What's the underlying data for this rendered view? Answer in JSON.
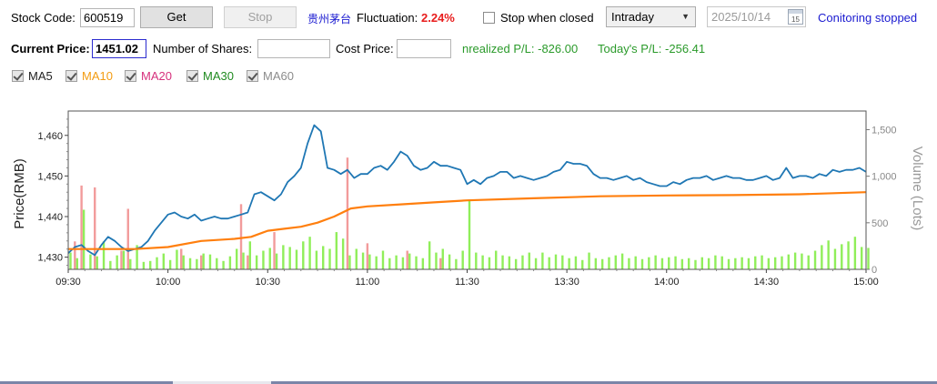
{
  "toolbar": {
    "stock_code_label": "Stock Code:",
    "stock_code_value": "600519",
    "get_label": "Get",
    "stop_label": "Stop",
    "stock_name": "贵州茅台",
    "fluctuation_label": "Fluctuation:",
    "fluctuation_value": "2.24%",
    "stop_when_closed_label": "Stop when closed",
    "stop_when_closed_checked": false,
    "period_selected": "Intraday",
    "date_value": "2025/10/14",
    "date_icon_text": "15",
    "monitor_status": "Conitoring stopped"
  },
  "position": {
    "current_price_label": "Current Price:",
    "current_price_value": "1451.02",
    "shares_label": "Number of Shares:",
    "shares_value": "",
    "cost_label": "Cost Price:",
    "cost_value": "",
    "unrealized_label": "nrealized P/L:",
    "unrealized_value": "-826.00",
    "today_label": "Today's P/L:",
    "today_value": "-256.41"
  },
  "ma_toggles": [
    {
      "label": "MA5",
      "color": "#222222",
      "checked": true
    },
    {
      "label": "MA10",
      "color": "#f39c12",
      "checked": true
    },
    {
      "label": "MA20",
      "color": "#d6317d",
      "checked": true
    },
    {
      "label": "MA30",
      "color": "#1f8a1f",
      "checked": true
    },
    {
      "label": "MA60",
      "color": "#8c8c8c",
      "checked": true
    }
  ],
  "colors": {
    "price_line": "#1f77b4",
    "avg_line": "#ff7f0e",
    "volume_up": "#90ee5a",
    "volume_down": "#f29b9b",
    "fluctuation": "#e81c1c",
    "stock_name": "#1a1ad0",
    "status": "#1a1ad0",
    "pl": "#2a9a2a"
  },
  "chart_data": {
    "type": "line",
    "ylabel": "Price(RMB)",
    "y2label": "Volume (Lots)",
    "ylim": [
      1427,
      1466
    ],
    "y2lim": [
      0,
      1700
    ],
    "yticks": [
      1430,
      1440,
      1450,
      1460
    ],
    "yticklabels": [
      "1,430",
      "1,440",
      "1,450",
      "1,460"
    ],
    "y2ticks": [
      0,
      500,
      1000,
      1500
    ],
    "y2ticklabels": [
      "0",
      "500",
      "1,000",
      "1,500"
    ],
    "xticklabels": [
      "09:30",
      "10:00",
      "10:30",
      "11:00",
      "11:30",
      "13:30",
      "14:00",
      "14:30",
      "15:00"
    ],
    "xtick_minutes": [
      0,
      30,
      60,
      90,
      120,
      150,
      180,
      210,
      240
    ],
    "xlim": [
      0,
      240
    ],
    "grid": false,
    "series": [
      {
        "x": [
          0,
          2,
          4,
          6,
          8,
          10,
          12,
          14,
          16,
          18,
          20,
          22,
          24,
          26,
          28,
          30,
          32,
          34,
          36,
          38,
          40,
          42,
          44,
          46,
          48,
          50,
          52,
          54,
          56,
          58,
          60,
          62,
          64,
          66,
          68,
          70,
          72,
          74,
          76,
          78,
          80,
          82,
          84,
          86,
          88,
          90,
          92,
          94,
          96,
          98,
          100,
          102,
          104,
          106,
          108,
          110,
          112,
          114,
          116,
          118,
          120,
          122,
          124,
          126,
          128,
          130,
          132,
          134,
          136,
          138,
          140,
          142,
          144,
          146,
          148,
          150,
          152,
          154,
          156,
          158,
          160,
          162,
          164,
          166,
          168,
          170,
          172,
          174,
          176,
          178,
          180,
          182,
          184,
          186,
          188,
          190,
          192,
          194,
          196,
          198,
          200,
          202,
          204,
          206,
          208,
          210,
          212,
          214,
          216,
          218,
          220,
          222,
          224,
          226,
          228,
          230,
          232,
          234,
          236,
          238,
          240
        ],
        "values": [
          1431.0,
          1432.5,
          1433.0,
          1431.5,
          1430.5,
          1433.0,
          1435.0,
          1434.0,
          1432.5,
          1431.5,
          1432.0,
          1432.5,
          1434.0,
          1436.5,
          1438.5,
          1440.5,
          1441.0,
          1440.0,
          1439.5,
          1440.5,
          1439.0,
          1439.5,
          1440.0,
          1439.5,
          1439.5,
          1440.0,
          1440.5,
          1441.0,
          1445.5,
          1446.0,
          1445.0,
          1444.0,
          1445.5,
          1448.5,
          1450.0,
          1452.0,
          1458.0,
          1462.5,
          1461.0,
          1452.0,
          1451.5,
          1450.5,
          1451.5,
          1449.5,
          1450.5,
          1450.5,
          1452.0,
          1452.5,
          1451.5,
          1453.5,
          1456.0,
          1455.0,
          1452.5,
          1451.5,
          1452.0,
          1453.5,
          1452.5,
          1452.5,
          1452.0,
          1451.5,
          1448.0,
          1449.0,
          1448.0,
          1449.5,
          1450.0,
          1451.0,
          1451.0,
          1449.5,
          1450.0,
          1449.5,
          1449.0,
          1449.5,
          1450.0,
          1451.0,
          1451.5,
          1453.5,
          1453.0,
          1453.0,
          1452.5,
          1450.5,
          1449.5,
          1449.5,
          1449.0,
          1449.5,
          1450.0,
          1449.0,
          1449.5,
          1448.5,
          1448.0,
          1447.5,
          1447.5,
          1448.5,
          1448.0,
          1449.0,
          1449.5,
          1449.5,
          1450.0,
          1449.0,
          1449.5,
          1450.0,
          1449.5,
          1449.5,
          1449.0,
          1449.0,
          1449.5,
          1450.0,
          1449.0,
          1449.5,
          1452.0,
          1449.5,
          1450.0,
          1450.0,
          1449.5,
          1450.5,
          1450.0,
          1451.5,
          1451.0,
          1451.5,
          1451.5,
          1452.0,
          1451.0
        ]
      },
      {
        "x": [
          0,
          10,
          20,
          30,
          40,
          50,
          55,
          60,
          65,
          70,
          75,
          80,
          85,
          90,
          100,
          110,
          120,
          140,
          160,
          180,
          200,
          220,
          240
        ],
        "values": [
          1432.0,
          1432.0,
          1432.0,
          1432.5,
          1434.0,
          1434.5,
          1435.0,
          1436.5,
          1437.0,
          1437.5,
          1438.5,
          1440.0,
          1442.0,
          1442.5,
          1443.0,
          1443.5,
          1444.0,
          1444.5,
          1445.0,
          1445.2,
          1445.3,
          1445.5,
          1446.0
        ]
      }
    ],
    "volume_up": [
      180,
      120,
      640,
      160,
      140,
      300,
      90,
      150,
      200,
      110,
      260,
      80,
      90,
      130,
      170,
      100,
      210,
      150,
      120,
      110,
      170,
      160,
      120,
      90,
      140,
      220,
      180,
      300,
      150,
      200,
      230,
      170,
      260,
      240,
      210,
      300,
      350,
      200,
      250,
      220,
      400,
      330,
      150,
      220,
      180,
      160,
      140,
      200,
      120,
      150,
      130,
      170,
      140,
      120,
      300,
      180,
      220,
      160,
      110,
      200,
      750,
      180,
      150,
      130,
      200,
      150,
      140,
      110,
      150,
      180,
      120,
      180,
      130,
      160,
      150,
      120,
      140,
      100,
      180,
      120,
      110,
      130,
      150,
      170,
      120,
      140,
      110,
      130,
      150,
      120,
      130,
      140,
      110,
      120,
      100,
      130,
      120,
      150,
      140,
      110,
      120,
      130,
      120,
      140,
      150,
      120,
      130,
      140,
      160,
      180,
      170,
      150,
      200,
      260,
      310,
      220,
      270,
      300,
      350,
      240,
      230
    ],
    "volume_down": [
      0,
      300,
      900,
      0,
      880,
      0,
      0,
      0,
      200,
      650,
      0,
      0,
      0,
      0,
      0,
      0,
      0,
      220,
      0,
      0,
      150,
      0,
      0,
      0,
      0,
      0,
      700,
      150,
      0,
      0,
      0,
      400,
      0,
      0,
      0,
      0,
      0,
      0,
      0,
      0,
      0,
      0,
      1200,
      0,
      0,
      280,
      0,
      0,
      0,
      0,
      0,
      200,
      0,
      0,
      0,
      0,
      120,
      0,
      0,
      0,
      0,
      0,
      0,
      0,
      0,
      0,
      0,
      0,
      0,
      0,
      0,
      0,
      0,
      0,
      0,
      0,
      0,
      0,
      0,
      0,
      0,
      0,
      0,
      0,
      0,
      0,
      0,
      0,
      0,
      0,
      0,
      0,
      0,
      0,
      0,
      0,
      0,
      0,
      0,
      0,
      0,
      0,
      0,
      0,
      0,
      0,
      0,
      0,
      0,
      0,
      0,
      0,
      0,
      0,
      0,
      0,
      0,
      0,
      0,
      0,
      0
    ]
  }
}
